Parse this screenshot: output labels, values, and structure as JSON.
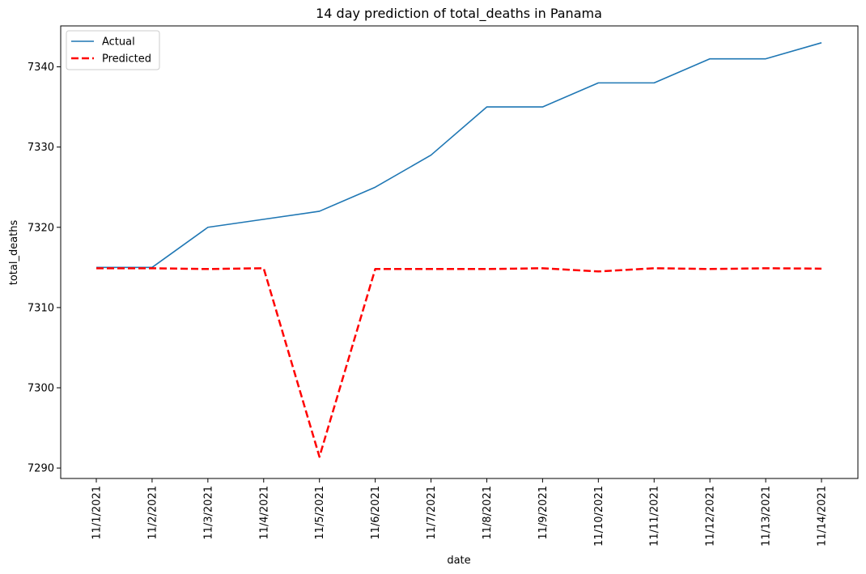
{
  "chart_data": {
    "type": "line",
    "title": "14 day prediction of total_deaths in Panama",
    "xlabel": "date",
    "ylabel": "total_deaths",
    "categories": [
      "11/1/2021",
      "11/2/2021",
      "11/3/2021",
      "11/4/2021",
      "11/5/2021",
      "11/6/2021",
      "11/7/2021",
      "11/8/2021",
      "11/9/2021",
      "11/10/2021",
      "11/11/2021",
      "11/12/2021",
      "11/13/2021",
      "11/14/2021"
    ],
    "yticks": [
      7290,
      7300,
      7310,
      7320,
      7330,
      7340
    ],
    "ylim": [
      7288.7,
      7345.1
    ],
    "grid": false,
    "legend_position": "top-left",
    "series": [
      {
        "name": "Actual",
        "color": "#1f77b4",
        "style": "solid",
        "values": [
          7315,
          7315,
          7320,
          7321,
          7322,
          7325,
          7329,
          7335,
          7335,
          7338,
          7338,
          7341,
          7341,
          7343
        ]
      },
      {
        "name": "Predicted",
        "color": "#ff0000",
        "style": "dashed",
        "values": [
          7314.9,
          7314.9,
          7314.8,
          7314.9,
          7291.4,
          7314.8,
          7314.8,
          7314.8,
          7314.9,
          7314.5,
          7314.9,
          7314.8,
          7314.9,
          7314.85
        ]
      }
    ]
  }
}
